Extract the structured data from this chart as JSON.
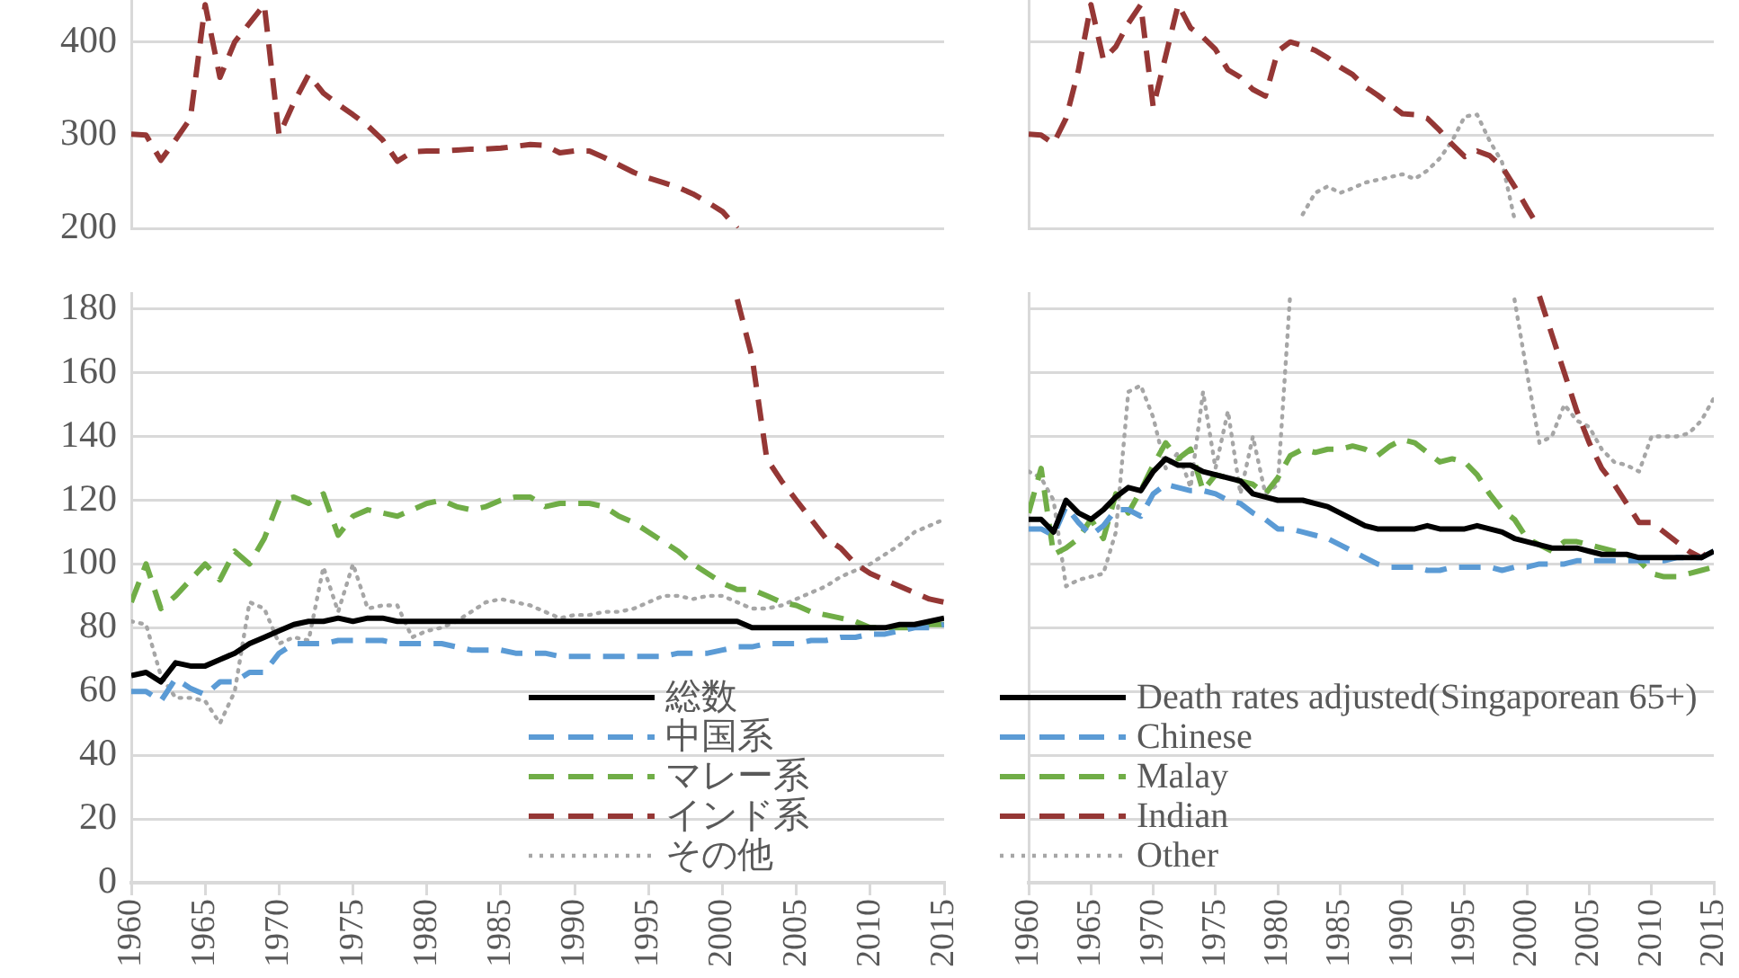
{
  "chart_data": [
    {
      "type": "line",
      "x": [
        1960,
        1961,
        1962,
        1963,
        1964,
        1965,
        1966,
        1967,
        1968,
        1969,
        1970,
        1971,
        1972,
        1973,
        1974,
        1975,
        1976,
        1977,
        1978,
        1979,
        1980,
        1981,
        1982,
        1983,
        1984,
        1985,
        1986,
        1987,
        1988,
        1989,
        1990,
        1991,
        1992,
        1993,
        1994,
        1995,
        1996,
        1997,
        1998,
        1999,
        2000,
        2001
      ],
      "xlim": [
        1960,
        2015
      ],
      "ylim": [
        200,
        445
      ],
      "yticks": [
        200,
        300,
        400
      ],
      "grid": "y",
      "tick_labels": "y",
      "marker": "none",
      "series": [
        {
          "color": "#953735",
          "line_style": "dashed",
          "values": [
            301,
            300,
            273,
            295,
            318,
            440,
            362,
            400,
            420,
            440,
            300,
            335,
            365,
            345,
            333,
            322,
            310,
            295,
            272,
            282,
            283,
            283,
            284,
            285,
            285,
            286,
            288,
            290,
            289,
            281,
            283,
            283,
            276,
            268,
            260,
            254,
            249,
            244,
            237,
            228,
            218,
            200
          ]
        }
      ]
    },
    {
      "type": "line",
      "x": [
        1960,
        1961,
        1962,
        1963,
        1964,
        1965,
        1966,
        1967,
        1968,
        1969,
        1970,
        1971,
        1972,
        1973,
        1974,
        1975,
        1976,
        1977,
        1978,
        1979,
        1980,
        1981,
        1982,
        1983,
        1984,
        1985,
        1986,
        1987,
        1988,
        1989,
        1990,
        1991,
        1992,
        1993,
        1994,
        1995,
        1996,
        1997,
        1998,
        1999,
        2000,
        2001,
        2002,
        2003,
        2004,
        2005,
        2006,
        2007,
        2008,
        2009,
        2010,
        2011,
        2012,
        2013,
        2014,
        2015
      ],
      "xlim": [
        1960,
        2015
      ],
      "xticks": [
        1960,
        1965,
        1970,
        1975,
        1980,
        1985,
        1990,
        1995,
        2000,
        2005,
        2010,
        2015
      ],
      "ylim": [
        0,
        185
      ],
      "yticks": [
        0,
        20,
        40,
        60,
        80,
        100,
        120,
        140,
        160,
        180
      ],
      "grid": "y",
      "legend": "bottom right",
      "marker": "none",
      "series": [
        {
          "name": "総数",
          "color": "#000000",
          "line_style": "solid",
          "values": [
            65,
            66,
            63,
            69,
            68,
            68,
            70,
            72,
            75,
            77,
            79,
            81,
            82,
            82,
            83,
            82,
            83,
            83,
            82,
            82,
            82,
            82,
            82,
            82,
            82,
            82,
            82,
            82,
            82,
            82,
            82,
            82,
            82,
            82,
            82,
            82,
            82,
            82,
            82,
            82,
            82,
            82,
            80,
            80,
            80,
            80,
            80,
            80,
            80,
            80,
            80,
            80,
            81,
            81,
            82,
            83
          ]
        },
        {
          "name": "中国系",
          "color": "#5b9bd5",
          "line_style": "dashed",
          "values": [
            60,
            60,
            57,
            64,
            61,
            59,
            63,
            63,
            66,
            66,
            72,
            75,
            75,
            75,
            76,
            76,
            76,
            76,
            75,
            75,
            75,
            75,
            74,
            73,
            73,
            73,
            72,
            72,
            72,
            71,
            71,
            71,
            71,
            71,
            71,
            71,
            71,
            72,
            72,
            72,
            73,
            74,
            74,
            75,
            75,
            75,
            76,
            76,
            77,
            77,
            78,
            78,
            79,
            80,
            80,
            81
          ]
        },
        {
          "name": "マレー系",
          "color": "#70ad47",
          "line_style": "dashed",
          "values": [
            88,
            100,
            86,
            90,
            95,
            100,
            95,
            104,
            100,
            108,
            120,
            121,
            119,
            122,
            109,
            115,
            117,
            116,
            115,
            117,
            119,
            120,
            118,
            117,
            118,
            120,
            121,
            121,
            118,
            119,
            119,
            119,
            118,
            115,
            113,
            110,
            107,
            104,
            100,
            97,
            94,
            92,
            92,
            90,
            88,
            87,
            85,
            84,
            83,
            82,
            80,
            80,
            80,
            80,
            81,
            81
          ]
        },
        {
          "name": "インド系",
          "color": "#953735",
          "line_style": "dashed",
          "values": [
            null,
            null,
            null,
            null,
            null,
            null,
            null,
            null,
            null,
            null,
            null,
            null,
            null,
            null,
            null,
            null,
            null,
            null,
            null,
            null,
            null,
            null,
            null,
            null,
            null,
            null,
            null,
            null,
            null,
            null,
            null,
            null,
            null,
            null,
            null,
            null,
            null,
            null,
            null,
            null,
            null,
            183,
            165,
            133,
            126,
            120,
            114,
            108,
            105,
            100,
            97,
            95,
            93,
            91,
            89,
            88
          ]
        },
        {
          "name": "その他",
          "color": "#a6a6a6",
          "line_style": "dotted",
          "values": [
            82,
            81,
            65,
            58,
            58,
            57,
            50,
            60,
            88,
            86,
            75,
            77,
            76,
            99,
            85,
            100,
            86,
            87,
            87,
            77,
            79,
            80,
            82,
            85,
            88,
            89,
            88,
            87,
            85,
            83,
            84,
            84,
            85,
            85,
            86,
            88,
            90,
            90,
            89,
            90,
            90,
            88,
            86,
            86,
            87,
            89,
            91,
            93,
            96,
            98,
            100,
            103,
            106,
            110,
            112,
            114
          ]
        }
      ]
    },
    {
      "type": "line",
      "x": [
        1960,
        1961,
        1962,
        1963,
        1964,
        1965,
        1966,
        1967,
        1968,
        1969,
        1970,
        1971,
        1972,
        1973,
        1974,
        1975,
        1976,
        1977,
        1978,
        1979,
        1980,
        1981,
        1982,
        1983,
        1984,
        1985,
        1986,
        1987,
        1988,
        1989,
        1990,
        1991,
        1992,
        1993,
        1994,
        1995,
        1996,
        1997,
        1998,
        1999,
        2000,
        2001
      ],
      "xlim": [
        1960,
        2015
      ],
      "ylim": [
        200,
        445
      ],
      "yticks": [
        200,
        300,
        400
      ],
      "grid": "y",
      "tick_labels": false,
      "marker": "none",
      "series": [
        {
          "color": "#953735",
          "line_style": "dashed",
          "values": [
            301,
            300,
            291,
            318,
            370,
            440,
            381,
            395,
            420,
            440,
            330,
            385,
            440,
            415,
            405,
            392,
            370,
            362,
            349,
            342,
            390,
            400,
            396,
            391,
            383,
            373,
            365,
            352,
            343,
            333,
            323,
            322,
            318,
            305,
            290,
            277,
            283,
            278,
            266,
            245,
            222,
            200
          ]
        },
        {
          "color": "#a6a6a6",
          "line_style": "dotted",
          "values": [
            null,
            null,
            null,
            null,
            null,
            null,
            null,
            null,
            null,
            null,
            null,
            null,
            null,
            null,
            null,
            null,
            null,
            null,
            null,
            null,
            null,
            null,
            215,
            238,
            245,
            238,
            243,
            249,
            252,
            255,
            258,
            253,
            262,
            275,
            294,
            320,
            322,
            294,
            271,
            210,
            null,
            null
          ]
        }
      ]
    },
    {
      "type": "line",
      "x": [
        1960,
        1961,
        1962,
        1963,
        1964,
        1965,
        1966,
        1967,
        1968,
        1969,
        1970,
        1971,
        1972,
        1973,
        1974,
        1975,
        1976,
        1977,
        1978,
        1979,
        1980,
        1981,
        1982,
        1983,
        1984,
        1985,
        1986,
        1987,
        1988,
        1989,
        1990,
        1991,
        1992,
        1993,
        1994,
        1995,
        1996,
        1997,
        1998,
        1999,
        2000,
        2001,
        2002,
        2003,
        2004,
        2005,
        2006,
        2007,
        2008,
        2009,
        2010,
        2011,
        2012,
        2013,
        2014,
        2015
      ],
      "xlim": [
        1960,
        2015
      ],
      "xticks": [
        1960,
        1965,
        1970,
        1975,
        1980,
        1985,
        1990,
        1995,
        2000,
        2005,
        2010,
        2015
      ],
      "ylim": [
        0,
        185
      ],
      "yticks": [
        0,
        20,
        40,
        60,
        80,
        100,
        120,
        140,
        160,
        180
      ],
      "grid": "y",
      "tick_labels": "x",
      "legend": "bottom left",
      "marker": "none",
      "series": [
        {
          "name": "Death rates adjusted(Singaporean 65+)",
          "color": "#000000",
          "line_style": "solid",
          "values": [
            114,
            114,
            110,
            120,
            116,
            114,
            117,
            121,
            124,
            123,
            129,
            133,
            131,
            131,
            129,
            128,
            127,
            126,
            122,
            121,
            120,
            120,
            120,
            119,
            118,
            116,
            114,
            112,
            111,
            111,
            111,
            111,
            112,
            111,
            111,
            111,
            112,
            111,
            110,
            108,
            107,
            106,
            105,
            105,
            105,
            104,
            103,
            103,
            103,
            102,
            102,
            102,
            102,
            102,
            102,
            104
          ]
        },
        {
          "name": "Chinese",
          "color": "#5b9bd5",
          "line_style": "dashed",
          "values": [
            111,
            111,
            109,
            118,
            113,
            109,
            112,
            117,
            117,
            115,
            122,
            125,
            124,
            123,
            123,
            122,
            120,
            119,
            116,
            114,
            111,
            111,
            110,
            109,
            108,
            106,
            104,
            102,
            100,
            99,
            99,
            99,
            98,
            98,
            99,
            99,
            99,
            99,
            98,
            99,
            99,
            100,
            100,
            100,
            101,
            101,
            101,
            101,
            101,
            101,
            101,
            101,
            102,
            102,
            102,
            104
          ]
        },
        {
          "name": "Malay",
          "color": "#70ad47",
          "line_style": "dashed",
          "values": [
            116,
            130,
            103,
            105,
            108,
            114,
            108,
            122,
            116,
            123,
            131,
            138,
            133,
            136,
            123,
            128,
            127,
            126,
            125,
            122,
            127,
            134,
            136,
            135,
            136,
            136,
            137,
            136,
            134,
            137,
            139,
            138,
            135,
            132,
            133,
            132,
            128,
            122,
            117,
            114,
            108,
            106,
            104,
            107,
            107,
            106,
            105,
            104,
            103,
            101,
            97,
            96,
            96,
            97,
            98,
            99
          ]
        },
        {
          "name": "Indian",
          "color": "#953735",
          "line_style": "dashed",
          "values": [
            null,
            null,
            null,
            null,
            null,
            null,
            null,
            null,
            null,
            null,
            null,
            null,
            null,
            null,
            null,
            null,
            null,
            null,
            null,
            null,
            null,
            null,
            null,
            null,
            null,
            null,
            null,
            null,
            null,
            null,
            null,
            null,
            null,
            null,
            null,
            null,
            null,
            null,
            null,
            null,
            null,
            184,
            172,
            160,
            148,
            138,
            130,
            125,
            119,
            113,
            113,
            110,
            107,
            104,
            102,
            105
          ]
        },
        {
          "name": "Other",
          "color": "#a6a6a6",
          "line_style": "dotted",
          "values": [
            129,
            127,
            120,
            93,
            95,
            96,
            97,
            110,
            154,
            156,
            146,
            130,
            135,
            124,
            154,
            130,
            148,
            122,
            140,
            122,
            125,
            185,
            null,
            null,
            null,
            null,
            null,
            null,
            null,
            null,
            null,
            null,
            null,
            null,
            null,
            null,
            null,
            null,
            null,
            183,
            160,
            138,
            140,
            150,
            145,
            143,
            136,
            132,
            131,
            129,
            140,
            140,
            140,
            141,
            145,
            152
          ]
        }
      ]
    }
  ]
}
